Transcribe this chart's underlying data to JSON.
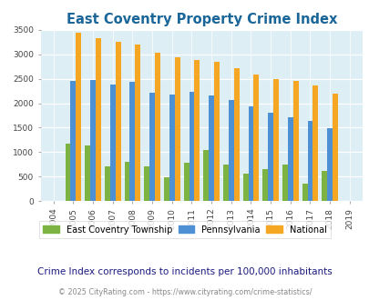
{
  "title": "East Coventry Property Crime Index",
  "years": [
    2004,
    2005,
    2006,
    2007,
    2008,
    2009,
    2010,
    2011,
    2012,
    2013,
    2014,
    2015,
    2016,
    2017,
    2018,
    2019
  ],
  "east_coventry": [
    0,
    1175,
    1130,
    700,
    800,
    700,
    490,
    775,
    1040,
    750,
    555,
    660,
    755,
    350,
    610,
    0
  ],
  "pennsylvania": [
    0,
    2460,
    2470,
    2380,
    2440,
    2210,
    2180,
    2230,
    2155,
    2070,
    1940,
    1800,
    1720,
    1630,
    1490,
    0
  ],
  "national": [
    0,
    3440,
    3330,
    3260,
    3210,
    3035,
    2945,
    2895,
    2845,
    2715,
    2590,
    2490,
    2460,
    2370,
    2200,
    0
  ],
  "ec_color": "#7cb342",
  "pa_color": "#4d90d4",
  "nat_color": "#f5a623",
  "bg_color": "#ddeef5",
  "title_color": "#1a6699",
  "subtitle_text": "Crime Index corresponds to incidents per 100,000 inhabitants",
  "footer_text": "© 2025 CityRating.com - https://www.cityrating.com/crime-statistics/",
  "ylim": [
    0,
    3500
  ],
  "yticks": [
    0,
    500,
    1000,
    1500,
    2000,
    2500,
    3000,
    3500
  ],
  "bar_width": 0.27,
  "legend_labels": [
    "East Coventry Township",
    "Pennsylvania",
    "National"
  ]
}
